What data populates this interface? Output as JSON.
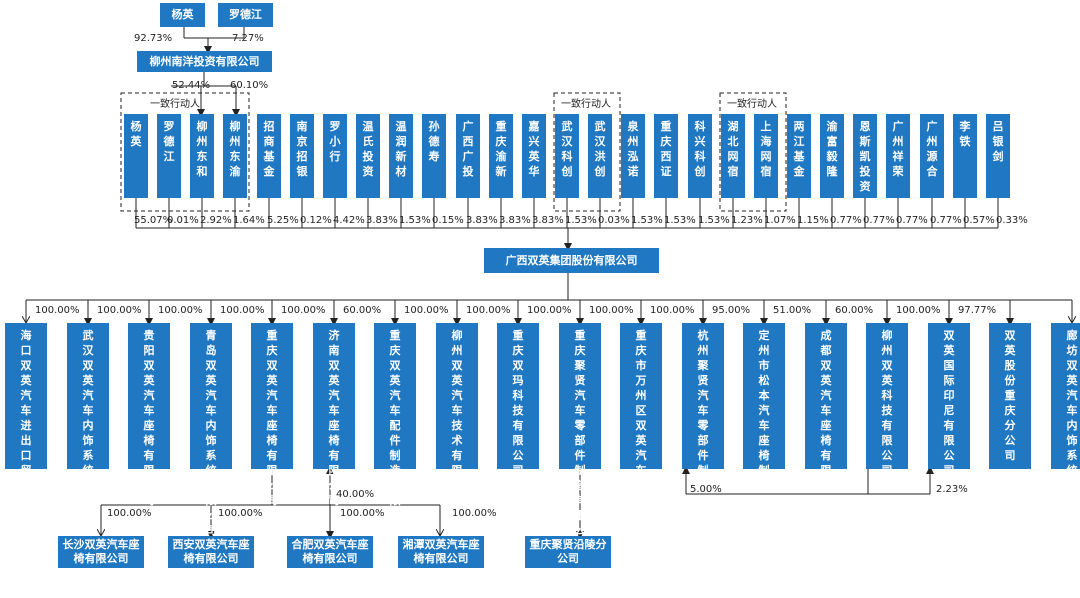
{
  "top_owners": [
    {
      "name": "杨英",
      "pct": "92.73%"
    },
    {
      "name": "罗德江",
      "pct": "7.27%"
    }
  ],
  "nanyang": {
    "name": "柳州南洋投资有限公司",
    "pct_left": "52.44%",
    "pct_right": "60.10%"
  },
  "concert_label": "一致行动人",
  "shareholders": [
    {
      "name": "杨英",
      "pct": "55.07%"
    },
    {
      "name": "罗德江",
      "pct": "0.01%"
    },
    {
      "name": "柳州东和",
      "pct": "2.92%"
    },
    {
      "name": "柳州东渝",
      "pct": "1.64%"
    },
    {
      "name": "招商基金",
      "pct": "5.25%"
    },
    {
      "name": "南京招银",
      "pct": "0.12%"
    },
    {
      "name": "罗小行",
      "pct": "4.42%"
    },
    {
      "name": "温氏投资",
      "pct": "3.83%"
    },
    {
      "name": "温润新材",
      "pct": "1.53%"
    },
    {
      "name": "孙德寿",
      "pct": "0.15%"
    },
    {
      "name": "广西广投",
      "pct": "3.83%"
    },
    {
      "name": "重庆渝新",
      "pct": "3.83%"
    },
    {
      "name": "嘉兴英华",
      "pct": "3.83%"
    },
    {
      "name": "武汉科创",
      "pct": "1.53%"
    },
    {
      "name": "武汉洪创",
      "pct": "0.03%"
    },
    {
      "name": "泉州泓诺",
      "pct": "1.53%"
    },
    {
      "name": "重庆西证",
      "pct": "1.53%"
    },
    {
      "name": "科兴科创",
      "pct": "1.53%"
    },
    {
      "name": "湖北网宿",
      "pct": "1.23%"
    },
    {
      "name": "上海网宿",
      "pct": "1.07%"
    },
    {
      "name": "两江基金",
      "pct": "1.15%"
    },
    {
      "name": "渝富毅隆",
      "pct": "0.77%"
    },
    {
      "name": "恩斯凯投资",
      "pct": "0.77%"
    },
    {
      "name": "广州祥荣",
      "pct": "0.77%"
    },
    {
      "name": "广州源合",
      "pct": "0.77%"
    },
    {
      "name": "李铁",
      "pct": "0.57%"
    },
    {
      "name": "吕银剑",
      "pct": "0.33%"
    }
  ],
  "company": {
    "name": "广西双英集团股份有限公司"
  },
  "subsidiaries": [
    {
      "name": "海口双英汽车进出口贸易有限公司",
      "pct": "100.00%"
    },
    {
      "name": "武汉双英汽车内饰系统有限公司",
      "pct": "100.00%"
    },
    {
      "name": "贵阳双英汽车座椅有限公司",
      "pct": "100.00%"
    },
    {
      "name": "青岛双英汽车内饰系统有限公司",
      "pct": "100.00%"
    },
    {
      "name": "重庆双英汽车座椅有限公司",
      "pct": "100.00%"
    },
    {
      "name": "济南双英汽车座椅有限公司",
      "pct": "60.00%"
    },
    {
      "name": "重庆双英汽车配件制造有限公司",
      "pct": "100.00%"
    },
    {
      "name": "柳州双英汽车技术有限公司",
      "pct": "100.00%"
    },
    {
      "name": "重庆双玛科技有限公司",
      "pct": "100.00%"
    },
    {
      "name": "重庆聚贤汽车零部件制造有限公司",
      "pct": "100.00%"
    },
    {
      "name": "重庆市万州区双英汽车内饰系统有限公司",
      "pct": "100.00%"
    },
    {
      "name": "杭州聚贤汽车零部件制造有限公司",
      "pct": "95.00%"
    },
    {
      "name": "定州市松本汽车座椅制造有限公司",
      "pct": "51.00%"
    },
    {
      "name": "成都双英汽车座椅有限公司",
      "pct": "60.00%"
    },
    {
      "name": "柳州双英科技有限公司",
      "pct": "100.00%"
    },
    {
      "name": "双英国际印尼有限公司",
      "pct": "97.77%"
    },
    {
      "name": "双英股份重庆分公司",
      "pct": ""
    },
    {
      "name": "廊坊双英汽车内饰系统有限公司",
      "pct": "100.00%"
    }
  ],
  "cross_pcts": {
    "to_hangzhou": "5.00%",
    "to_indonesia": "2.23%",
    "to_jinan": "40.00%"
  },
  "bottom": [
    {
      "name": "长沙双英汽车座椅有限公司",
      "pct": "100.00%"
    },
    {
      "name": "西安双英汽车座椅有限公司",
      "pct": "100.00%"
    },
    {
      "name": "合肥双英汽车座椅有限公司",
      "pct": "100.00%"
    },
    {
      "name": "湘潭双英汽车座椅有限公司",
      "pct": "100.00%"
    },
    {
      "name": "重庆聚贤沿陵分公司",
      "pct": ""
    }
  ],
  "colors": {
    "box": "#1f78c1",
    "line": "#222222"
  }
}
